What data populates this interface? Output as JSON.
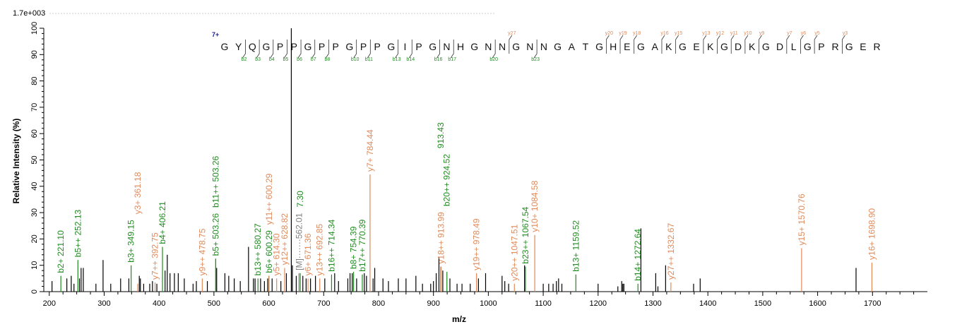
{
  "chart_data": {
    "type": "bar",
    "scale_label": "1.7e+003",
    "xlabel": "m/z",
    "ylabel": "Relative   Intensity (%)",
    "xlim": [
      190,
      1800
    ],
    "ylim": [
      0,
      100
    ],
    "xticks": [
      200,
      300,
      400,
      500,
      600,
      700,
      800,
      900,
      1000,
      1100,
      1200,
      1300,
      1400,
      1500,
      1600,
      1700
    ],
    "yticks": [
      0,
      10,
      20,
      30,
      40,
      50,
      60,
      70,
      80,
      90,
      100
    ],
    "colors": {
      "b": "#1e8c1e",
      "y": "#e08a5a",
      "other": "#000000",
      "precursor": "#808080",
      "charge": "#1a1aa0"
    },
    "peptide": {
      "charge": "7+",
      "sequence": "GYQGPPGPPGPPGIPGNHGNNGNNGATGHEGAKGEKGDKGDLGPRGER",
      "b_ions": [
        2,
        3,
        4,
        5,
        6,
        7,
        8,
        10,
        11,
        13,
        14,
        16,
        17,
        20,
        23
      ],
      "y_ions": [
        27,
        20,
        19,
        18,
        16,
        15,
        13,
        12,
        11,
        10,
        9,
        7,
        6,
        5,
        3
      ]
    },
    "annotated_peaks": [
      {
        "mz": 221.1,
        "intensity": 6,
        "type": "b",
        "label": "b2+ 221.10"
      },
      {
        "mz": 252.13,
        "intensity": 12,
        "type": "b",
        "label": "b5++ 252.13"
      },
      {
        "mz": 349.15,
        "intensity": 10,
        "type": "b",
        "label": "b3+ 349.15"
      },
      {
        "mz": 361.18,
        "intensity": 3,
        "type": "y",
        "label": "y3+ 361.18"
      },
      {
        "mz": 392.75,
        "intensity": 3.5,
        "type": "y",
        "label": "y7++ 392.75"
      },
      {
        "mz": 406.21,
        "intensity": 17,
        "type": "b",
        "label": "b4+ 406.21"
      },
      {
        "mz": 478.75,
        "intensity": 5,
        "type": "y",
        "label": "y9++ 478.75"
      },
      {
        "mz": 503.26,
        "intensity": 12.5,
        "type": "b",
        "label": "b5+ 503.26"
      },
      {
        "mz": 503.26,
        "intensity": 12.5,
        "type": "b",
        "label": "b11++ 503.26",
        "stack": 1
      },
      {
        "mz": 580.27,
        "intensity": 5,
        "type": "b",
        "label": "b13++ 580.27"
      },
      {
        "mz": 600.29,
        "intensity": 6,
        "type": "b",
        "label": "b6+ 600.29"
      },
      {
        "mz": 600.29,
        "intensity": 6,
        "type": "y",
        "label": "y11++ 600.29",
        "stack": 1
      },
      {
        "mz": 614.3,
        "intensity": 5,
        "type": "y",
        "label": "y5+ 614.30"
      },
      {
        "mz": 628.82,
        "intensity": 9,
        "type": "y",
        "label": "y12++ 628.82"
      },
      {
        "mz": 655.0,
        "intensity": 7,
        "type": "precursor",
        "label": "[M]·······562.01"
      },
      {
        "mz": 657.3,
        "intensity": 7,
        "type": "b",
        "label": "7.30",
        "stack": 2
      },
      {
        "mz": 671.36,
        "intensity": 5,
        "type": "y",
        "label": "y6+ 671.36"
      },
      {
        "mz": 692.85,
        "intensity": 5,
        "type": "y",
        "label": "y13++ 692.85"
      },
      {
        "mz": 714.34,
        "intensity": 6.5,
        "type": "b",
        "label": "b16++ 714.34"
      },
      {
        "mz": 754.39,
        "intensity": 7.5,
        "type": "b",
        "label": "b8+ 754.39"
      },
      {
        "mz": 770.39,
        "intensity": 6.5,
        "type": "b",
        "label": "b17++ 770.39"
      },
      {
        "mz": 784.44,
        "intensity": 44.5,
        "type": "y",
        "label": "y7+ 784.44"
      },
      {
        "mz": 913.43,
        "intensity": 9.5,
        "type": "b",
        "label": "913.43",
        "stack": 2
      },
      {
        "mz": 913.99,
        "intensity": 9.5,
        "type": "y",
        "label": "y18++ 913.99"
      },
      {
        "mz": 924.52,
        "intensity": 7.5,
        "type": "b",
        "label": "b20++ 924.52"
      },
      {
        "mz": 978.49,
        "intensity": 7,
        "type": "y",
        "label": "y19++ 978.49"
      },
      {
        "mz": 1047.51,
        "intensity": 3,
        "type": "y",
        "label": "y20++ 1047.51"
      },
      {
        "mz": 1067.54,
        "intensity": 9.5,
        "type": "b",
        "label": "b23++ 1067.54"
      },
      {
        "mz": 1084.58,
        "intensity": 21.5,
        "type": "y",
        "label": "y10+ 1084.58"
      },
      {
        "mz": 1159.52,
        "intensity": 6.5,
        "type": "b",
        "label": "b13+ 1159.52"
      },
      {
        "mz": 1272.64,
        "intensity": 3,
        "type": "b",
        "label": "b14+ 1272.64"
      },
      {
        "mz": 1332.67,
        "intensity": 3.5,
        "type": "y",
        "label": "y27++ 1332.67"
      },
      {
        "mz": 1570.76,
        "intensity": 16.5,
        "type": "y",
        "label": "y15+ 1570.76"
      },
      {
        "mz": 1698.9,
        "intensity": 11,
        "type": "y",
        "label": "y16+ 1698.90"
      }
    ],
    "other_peaks": [
      [
        205,
        4
      ],
      [
        232,
        5
      ],
      [
        240,
        6
      ],
      [
        245,
        3
      ],
      [
        255,
        5
      ],
      [
        258,
        9
      ],
      [
        262,
        9
      ],
      [
        285,
        3
      ],
      [
        298,
        12
      ],
      [
        312,
        3
      ],
      [
        330,
        5
      ],
      [
        345,
        5
      ],
      [
        364,
        6
      ],
      [
        366,
        5
      ],
      [
        372,
        3
      ],
      [
        383,
        3
      ],
      [
        388,
        4
      ],
      [
        396,
        3
      ],
      [
        411,
        8
      ],
      [
        415,
        14
      ],
      [
        420,
        7
      ],
      [
        428,
        7
      ],
      [
        435,
        7
      ],
      [
        446,
        5
      ],
      [
        462,
        3
      ],
      [
        468,
        4
      ],
      [
        488,
        4
      ],
      [
        505,
        9
      ],
      [
        520,
        7
      ],
      [
        527,
        6
      ],
      [
        537,
        5
      ],
      [
        548,
        4
      ],
      [
        563,
        17
      ],
      [
        572,
        5
      ],
      [
        575,
        5
      ],
      [
        585,
        5
      ],
      [
        592,
        4
      ],
      [
        598,
        5
      ],
      [
        606,
        5
      ],
      [
        622,
        4
      ],
      [
        632,
        7
      ],
      [
        641,
        100
      ],
      [
        643,
        10
      ],
      [
        650,
        6
      ],
      [
        662,
        6
      ],
      [
        668,
        5
      ],
      [
        676,
        5
      ],
      [
        685,
        6
      ],
      [
        702,
        5
      ],
      [
        720,
        7
      ],
      [
        727,
        4
      ],
      [
        744,
        5
      ],
      [
        748,
        7
      ],
      [
        752,
        7
      ],
      [
        760,
        5
      ],
      [
        774,
        7
      ],
      [
        778,
        6
      ],
      [
        790,
        5
      ],
      [
        793,
        9
      ],
      [
        808,
        5
      ],
      [
        818,
        4
      ],
      [
        836,
        5
      ],
      [
        850,
        5
      ],
      [
        868,
        6
      ],
      [
        880,
        3
      ],
      [
        895,
        3
      ],
      [
        900,
        4
      ],
      [
        905,
        7
      ],
      [
        910,
        13
      ],
      [
        917,
        8
      ],
      [
        930,
        5
      ],
      [
        943,
        3
      ],
      [
        952,
        3
      ],
      [
        967,
        3
      ],
      [
        982,
        5
      ],
      [
        995,
        7
      ],
      [
        1025,
        6
      ],
      [
        1030,
        4
      ],
      [
        1037,
        3
      ],
      [
        1066,
        10
      ],
      [
        1100,
        3
      ],
      [
        1110,
        3
      ],
      [
        1118,
        3
      ],
      [
        1124,
        4
      ],
      [
        1128,
        5
      ],
      [
        1134,
        3
      ],
      [
        1200,
        3
      ],
      [
        1236,
        2
      ],
      [
        1243,
        4
      ],
      [
        1245,
        3
      ],
      [
        1247,
        3
      ],
      [
        1278,
        24
      ],
      [
        1305,
        7
      ],
      [
        1309,
        2
      ],
      [
        1323,
        10
      ],
      [
        1374,
        3
      ],
      [
        1386,
        5
      ],
      [
        1670,
        9
      ]
    ]
  }
}
